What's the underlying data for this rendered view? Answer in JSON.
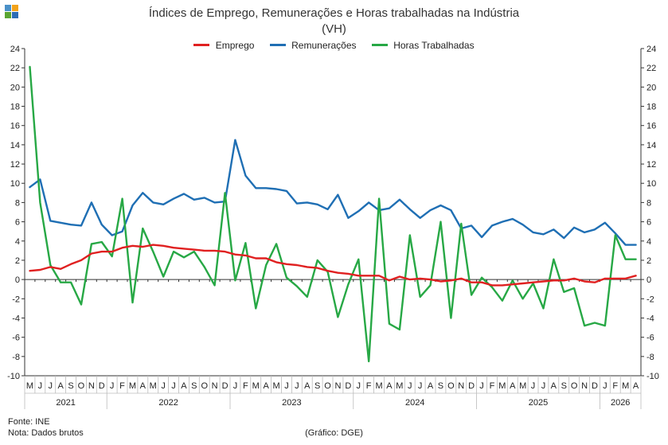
{
  "header": {
    "title_line1": "Índices de Emprego, Remunerações e Horas trabalhadas na Indústria",
    "title_line2": "(VH)"
  },
  "footer": {
    "source": "Fonte: INE",
    "note": "Nota: Dados brutos",
    "credit": "(Gráfico: DGE)"
  },
  "logo_colors": [
    "#4a90c8",
    "#f2a31b",
    "#5aa532",
    "#2d6db5"
  ],
  "chart_data": {
    "type": "line",
    "title": "Índices de Emprego, Remunerações e Horas trabalhadas na Indústria (VH)",
    "ylim": [
      -10,
      24
    ],
    "yticks": [
      -10,
      -8,
      -6,
      -4,
      -2,
      0,
      2,
      4,
      6,
      8,
      10,
      12,
      14,
      16,
      18,
      20,
      22,
      24
    ],
    "grid": false,
    "legend_position": "top-center",
    "months": [
      "M",
      "J",
      "J",
      "A",
      "S",
      "O",
      "N",
      "D",
      "J",
      "F",
      "M",
      "A",
      "M",
      "J",
      "J",
      "A",
      "S",
      "O",
      "N",
      "D",
      "J",
      "F",
      "M",
      "A",
      "M",
      "J",
      "J",
      "A",
      "S",
      "O",
      "N",
      "D",
      "J",
      "F",
      "M",
      "A",
      "M",
      "J",
      "J",
      "A",
      "S",
      "O",
      "N",
      "D",
      "J",
      "F",
      "M",
      "A",
      "M",
      "J",
      "J",
      "A",
      "S",
      "O",
      "N",
      "D",
      "J",
      "F",
      "M",
      "A"
    ],
    "years": [
      {
        "label": "2021",
        "start": 0,
        "end": 7
      },
      {
        "label": "2022",
        "start": 8,
        "end": 19
      },
      {
        "label": "2023",
        "start": 20,
        "end": 31
      },
      {
        "label": "2024",
        "start": 32,
        "end": 43
      },
      {
        "label": "2025",
        "start": 44,
        "end": 55
      },
      {
        "label": "2026",
        "start": 56,
        "end": 59
      }
    ],
    "series": [
      {
        "name": "Emprego",
        "color": "#e02020",
        "values": [
          0.9,
          1.0,
          1.3,
          1.1,
          1.6,
          2.0,
          2.7,
          2.9,
          2.9,
          3.3,
          3.5,
          3.4,
          3.6,
          3.5,
          3.3,
          3.2,
          3.1,
          3.0,
          3.0,
          2.9,
          2.6,
          2.5,
          2.2,
          2.2,
          1.8,
          1.6,
          1.5,
          1.3,
          1.2,
          0.9,
          0.7,
          0.6,
          0.4,
          0.4,
          0.4,
          -0.1,
          0.3,
          0.0,
          0.1,
          0.0,
          -0.2,
          -0.1,
          0.1,
          -0.3,
          -0.3,
          -0.6,
          -0.6,
          -0.5,
          -0.4,
          -0.3,
          -0.2,
          -0.1,
          -0.1,
          0.1,
          -0.2,
          -0.3,
          0.1,
          0.1,
          0.1,
          0.4
        ]
      },
      {
        "name": "Remunerações",
        "color": "#1f6fb4",
        "values": [
          9.6,
          10.4,
          6.1,
          5.9,
          5.7,
          5.6,
          8.0,
          5.7,
          4.6,
          5.0,
          7.7,
          9.0,
          8.0,
          7.8,
          8.4,
          8.9,
          8.3,
          8.5,
          8.0,
          8.1,
          14.5,
          10.8,
          9.5,
          9.5,
          9.4,
          9.2,
          7.9,
          8.0,
          7.8,
          7.3,
          8.8,
          6.4,
          7.1,
          8.0,
          7.2,
          7.4,
          8.3,
          7.3,
          6.4,
          7.2,
          7.7,
          7.2,
          5.3,
          5.6,
          4.4,
          5.6,
          6.0,
          6.3,
          5.7,
          4.9,
          4.7,
          5.2,
          4.3,
          5.4,
          4.9,
          5.2,
          5.9,
          4.8,
          3.6,
          3.6
        ]
      },
      {
        "name": "Horas Trabalhadas",
        "color": "#27a845",
        "values": [
          22.1,
          8.0,
          1.5,
          -0.3,
          -0.3,
          -2.6,
          3.7,
          3.9,
          2.4,
          8.4,
          -2.4,
          5.3,
          2.9,
          0.3,
          2.9,
          2.3,
          2.9,
          1.3,
          -0.6,
          9.0,
          -0.1,
          3.8,
          -3.0,
          1.5,
          3.7,
          0.2,
          -0.7,
          -1.8,
          2.0,
          0.8,
          -3.9,
          -0.5,
          2.1,
          -8.5,
          8.4,
          -4.6,
          -5.2,
          4.6,
          -1.8,
          -0.6,
          6.0,
          -4.0,
          5.8,
          -1.6,
          0.2,
          -0.8,
          -2.2,
          -0.1,
          -2.0,
          -0.4,
          -3.0,
          2.1,
          -1.3,
          -0.9,
          -4.8,
          -4.5,
          -4.8,
          4.6,
          2.1,
          2.1
        ]
      }
    ]
  }
}
